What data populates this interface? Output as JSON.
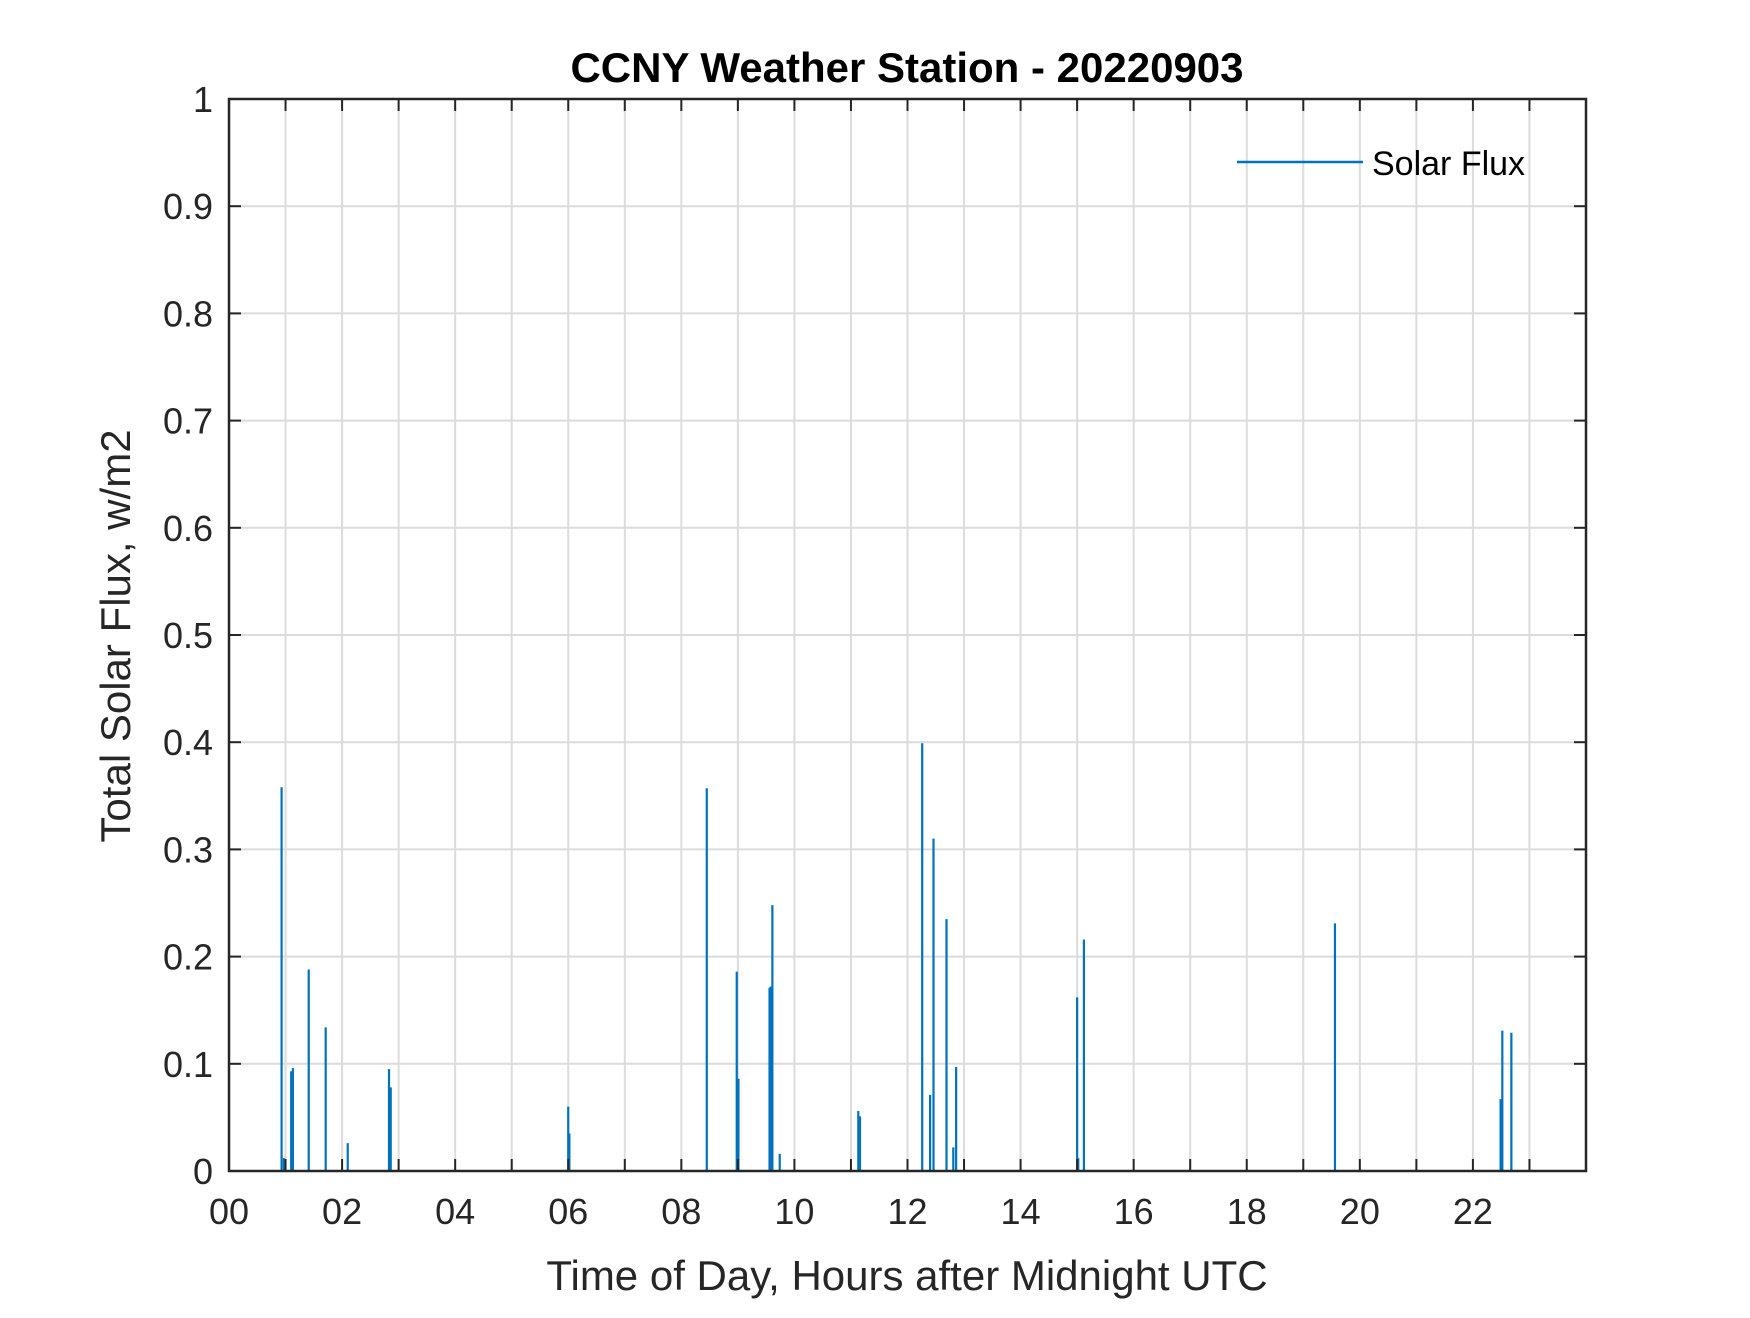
{
  "chart_data": {
    "type": "bar",
    "title": "CCNY Weather Station - 20220903",
    "xlabel": "Time of Day, Hours after Midnight UTC",
    "ylabel": "Total Solar Flux, w/m2",
    "xlim": [
      0,
      24
    ],
    "ylim": [
      0,
      1
    ],
    "grid": true,
    "xticks": [
      0,
      1,
      2,
      3,
      4,
      5,
      6,
      7,
      8,
      9,
      10,
      11,
      12,
      13,
      14,
      15,
      16,
      17,
      18,
      19,
      20,
      21,
      22,
      23
    ],
    "xtick_labels": [
      "00",
      "",
      "02",
      "",
      "04",
      "",
      "06",
      "",
      "08",
      "",
      "10",
      "",
      "12",
      "",
      "14",
      "",
      "16",
      "",
      "18",
      "",
      "20",
      "",
      "22",
      ""
    ],
    "yticks": [
      0,
      0.1,
      0.2,
      0.3,
      0.4,
      0.5,
      0.6,
      0.7,
      0.8,
      0.9,
      1
    ],
    "ytick_labels": [
      "0",
      "0.1",
      "0.2",
      "0.3",
      "0.4",
      "0.5",
      "0.6",
      "0.7",
      "0.8",
      "0.9",
      "1"
    ],
    "legend": {
      "position": "top-right",
      "entries": [
        "Solar Flux"
      ]
    },
    "series": [
      {
        "name": "Solar Flux",
        "color": "#0072BD",
        "points": [
          {
            "x": 0.93,
            "y": 0.358
          },
          {
            "x": 0.97,
            "y": 0.012
          },
          {
            "x": 1.1,
            "y": 0.093
          },
          {
            "x": 1.13,
            "y": 0.096
          },
          {
            "x": 1.41,
            "y": 0.188
          },
          {
            "x": 1.71,
            "y": 0.134
          },
          {
            "x": 2.1,
            "y": 0.026
          },
          {
            "x": 2.83,
            "y": 0.095
          },
          {
            "x": 2.86,
            "y": 0.078
          },
          {
            "x": 6.0,
            "y": 0.06
          },
          {
            "x": 6.02,
            "y": 0.035
          },
          {
            "x": 8.45,
            "y": 0.357
          },
          {
            "x": 8.98,
            "y": 0.186
          },
          {
            "x": 9.01,
            "y": 0.086
          },
          {
            "x": 9.56,
            "y": 0.171
          },
          {
            "x": 9.58,
            "y": 0.172
          },
          {
            "x": 9.61,
            "y": 0.248
          },
          {
            "x": 9.74,
            "y": 0.016
          },
          {
            "x": 11.13,
            "y": 0.056
          },
          {
            "x": 11.16,
            "y": 0.051
          },
          {
            "x": 12.26,
            "y": 0.399
          },
          {
            "x": 12.4,
            "y": 0.071
          },
          {
            "x": 12.46,
            "y": 0.31
          },
          {
            "x": 12.69,
            "y": 0.235
          },
          {
            "x": 12.81,
            "y": 0.022
          },
          {
            "x": 12.86,
            "y": 0.097
          },
          {
            "x": 15.0,
            "y": 0.162
          },
          {
            "x": 15.02,
            "y": 0.012
          },
          {
            "x": 15.12,
            "y": 0.216
          },
          {
            "x": 19.56,
            "y": 0.231
          },
          {
            "x": 22.49,
            "y": 0.067
          },
          {
            "x": 22.52,
            "y": 0.131
          },
          {
            "x": 22.68,
            "y": 0.129
          }
        ]
      }
    ]
  }
}
